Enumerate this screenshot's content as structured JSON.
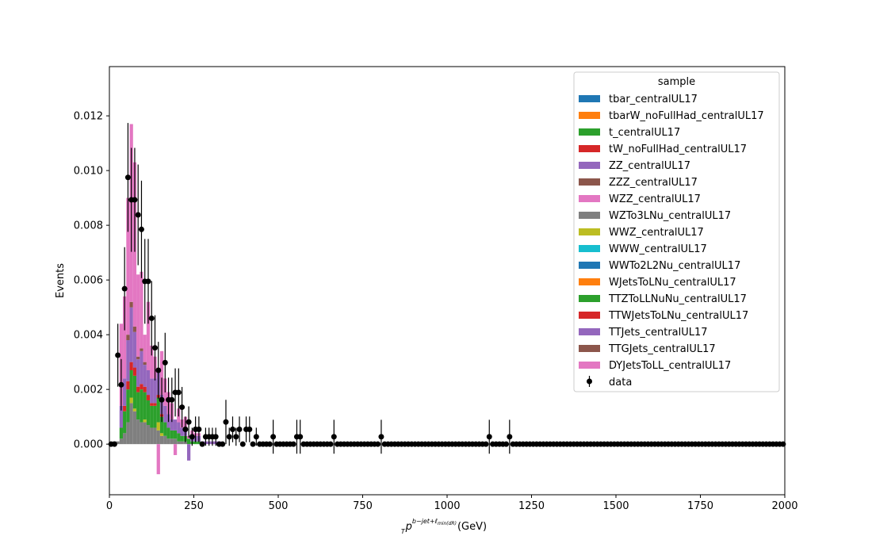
{
  "chart_data": {
    "type": "bar",
    "stacked": true,
    "xlabel_main": "p",
    "xlabel_sub": "T",
    "xlabel_sup": "b−jet+ℓ",
    "xlabel_sup_sub": "min(dR)",
    "xlabel_unit": " (GeV)",
    "ylabel": "Events",
    "xlim": [
      0,
      2000
    ],
    "ylim": [
      -0.00185,
      0.0138
    ],
    "bin_width": 10,
    "xticks": [
      0,
      250,
      500,
      750,
      1000,
      1250,
      1500,
      1750,
      2000
    ],
    "xtick_labels": [
      "0",
      "250",
      "500",
      "750",
      "1000",
      "1250",
      "1500",
      "1750",
      "2000"
    ],
    "yticks": [
      0.0,
      0.002,
      0.004,
      0.006,
      0.008,
      0.01,
      0.012
    ],
    "ytick_labels": [
      "0.000",
      "0.002",
      "0.004",
      "0.006",
      "0.008",
      "0.010",
      "0.012"
    ],
    "grid": false,
    "legend": {
      "title": "sample",
      "placement": "upper right"
    },
    "colors": {
      "tab_blue": "#1f77b4",
      "tab_orange": "#ff7f0e",
      "tab_green": "#2ca02c",
      "tab_red": "#d62728",
      "tab_purple": "#9467bd",
      "tab_brown": "#8c564b",
      "tab_pink": "#e377c2",
      "tab_gray": "#7f7f7f",
      "tab_olive": "#bcbd22",
      "tab_cyan": "#17becf"
    },
    "series": [
      {
        "name": "tbar_centralUL17",
        "color": "#1f77b4",
        "values": {}
      },
      {
        "name": "tbarW_noFullHad_centralUL17",
        "color": "#ff7f0e",
        "values": {}
      },
      {
        "name": "t_centralUL17",
        "color": "#2ca02c",
        "values": {}
      },
      {
        "name": "tW_noFullHad_centralUL17",
        "color": "#d62728",
        "values": {}
      },
      {
        "name": "ZZ_centralUL17",
        "color": "#9467bd",
        "values": {}
      },
      {
        "name": "ZZZ_centralUL17",
        "color": "#8c564b",
        "values": {}
      },
      {
        "name": "WZZ_centralUL17",
        "color": "#e377c2",
        "values": {}
      },
      {
        "name": "WZTo3LNu_centralUL17",
        "color": "#7f7f7f",
        "values": {
          "10": 0.0001,
          "20": 0.0001,
          "30": 0.0002,
          "40": 0.0004,
          "50": 0.0008,
          "60": 0.0015,
          "70": 0.0012,
          "80": 0.0009,
          "90": 0.0008,
          "100": 0.0008,
          "110": 0.0007,
          "120": 0.0006,
          "130": 0.0006,
          "140": 0.0005,
          "150": 0.0003,
          "160": 0.0003,
          "170": 0.0002,
          "180": 0.0002,
          "190": 0.0002,
          "200": 0.0001,
          "210": 0.0001,
          "220": 0.0001
        }
      },
      {
        "name": "WWZ_centralUL17",
        "color": "#bcbd22",
        "values": {
          "60": 0.0002,
          "70": 0.0001,
          "100": 0.0001,
          "140": 0.0003,
          "150": 0.0001
        }
      },
      {
        "name": "WWW_centralUL17",
        "color": "#17becf",
        "values": {}
      },
      {
        "name": "WWTo2L2Nu_centralUL17",
        "color": "#1f77b4",
        "values": {}
      },
      {
        "name": "WJetsToLNu_centralUL17",
        "color": "#ff7f0e",
        "values": {}
      },
      {
        "name": "TTZToLLNuNu_centralUL17",
        "color": "#2ca02c",
        "values": {
          "30": 0.0004,
          "40": 0.0008,
          "50": 0.0012,
          "60": 0.001,
          "70": 0.0012,
          "80": 0.001,
          "90": 0.0012,
          "100": 0.001,
          "110": 0.0009,
          "120": 0.0008,
          "130": 0.0008,
          "140": 0.0009,
          "150": 0.0006,
          "160": 0.0005,
          "170": 0.0004,
          "180": 0.0003,
          "190": 0.0003,
          "200": 0.0003,
          "210": 0.0002,
          "220": 0.0002,
          "230": 0.0002,
          "240": 0.0001,
          "250": 0.0001,
          "260": 0.0001
        }
      },
      {
        "name": "TTWJetsToLNu_centralUL17",
        "color": "#d62728",
        "values": {
          "40": 0.0002,
          "50": 0.0003,
          "60": 0.0003,
          "70": 0.0003,
          "80": 0.0002,
          "90": 0.0002,
          "100": 0.0002,
          "110": 0.0002,
          "120": 0.0001,
          "130": 0.0001,
          "140": 0.0001,
          "150": 0.0001
        }
      },
      {
        "name": "TTJets_centralUL17",
        "color": "#9467bd",
        "values": {
          "30": 0.0008,
          "40": 0.001,
          "50": 0.0015,
          "60": 0.002,
          "70": 0.0013,
          "80": 0.001,
          "90": 0.0012,
          "100": 0.0008,
          "110": 0.0009,
          "120": 0.0009,
          "130": 0.0009,
          "140": 0.0009,
          "150": 0.0007,
          "160": 0.0006,
          "170": 0.0005,
          "180": 0.0004,
          "190": 0.0004,
          "200": 0.0004,
          "210": 0.0003,
          "220": 0.0003,
          "230": -0.0006,
          "240": 0.0002,
          "250": 0.0002,
          "260": 0.0002,
          "270": 0.0001,
          "280": 0.0001,
          "290": 0.0001,
          "300": 0.0001,
          "310": 0.0001,
          "320": 0.0001
        }
      },
      {
        "name": "TTGJets_centralUL17",
        "color": "#8c564b",
        "values": {
          "50": 0.0002,
          "60": 0.0002,
          "70": 0.0002,
          "80": 0.0001,
          "90": 0.0001,
          "100": 0.0001
        }
      },
      {
        "name": "DYJetsToLL_centralUL17",
        "color": "#e377c2",
        "values": {
          "30": 0.003,
          "40": 0.003,
          "50": 0.005,
          "60": 0.0065,
          "70": 0.006,
          "80": 0.003,
          "90": 0.0028,
          "100": 0.001,
          "110": 0.0025,
          "120": 0.0012,
          "130": 0.0008,
          "140": -0.0011,
          "150": 0.0016,
          "160": 0.001,
          "170": 0.0008,
          "180": 0.0006,
          "190": -0.0004,
          "200": 0.0005,
          "210": 0.0003,
          "220": 0.0004,
          "230": 0.0001,
          "240": 0.0002,
          "250": 0.0001,
          "260": 0.0001
        }
      }
    ],
    "data": {
      "name": "data",
      "color": "#000000",
      "points": [
        {
          "x": 5,
          "y": 0,
          "err": 0
        },
        {
          "x": 15,
          "y": 0,
          "err": 0
        },
        {
          "x": 25,
          "y": 0.00325,
          "err": 0.00115
        },
        {
          "x": 35,
          "y": 0.00217,
          "err": 0.00094
        },
        {
          "x": 45,
          "y": 0.00568,
          "err": 0.00152
        },
        {
          "x": 55,
          "y": 0.00975,
          "err": 0.00199
        },
        {
          "x": 65,
          "y": 0.00893,
          "err": 0.0019
        },
        {
          "x": 75,
          "y": 0.00893,
          "err": 0.0019
        },
        {
          "x": 85,
          "y": 0.00838,
          "err": 0.00184
        },
        {
          "x": 95,
          "y": 0.00785,
          "err": 0.00178
        },
        {
          "x": 105,
          "y": 0.00595,
          "err": 0.00155
        },
        {
          "x": 115,
          "y": 0.00595,
          "err": 0.00155
        },
        {
          "x": 125,
          "y": 0.0046,
          "err": 0.00136
        },
        {
          "x": 135,
          "y": 0.00352,
          "err": 0.00119
        },
        {
          "x": 145,
          "y": 0.0027,
          "err": 0.00104
        },
        {
          "x": 155,
          "y": 0.00162,
          "err": 0.00081
        },
        {
          "x": 165,
          "y": 0.00298,
          "err": 0.00109
        },
        {
          "x": 175,
          "y": 0.00162,
          "err": 0.00081
        },
        {
          "x": 185,
          "y": 0.00162,
          "err": 0.00081
        },
        {
          "x": 195,
          "y": 0.00189,
          "err": 0.00088
        },
        {
          "x": 205,
          "y": 0.00189,
          "err": 0.00088
        },
        {
          "x": 215,
          "y": 0.00135,
          "err": 0.00074
        },
        {
          "x": 225,
          "y": 0.00054,
          "err": 0.00047
        },
        {
          "x": 235,
          "y": 0.00081,
          "err": 0.00057
        },
        {
          "x": 245,
          "y": 0.00027,
          "err": 0.00033
        },
        {
          "x": 255,
          "y": 0.00054,
          "err": 0.00047
        },
        {
          "x": 265,
          "y": 0.00054,
          "err": 0.00047
        },
        {
          "x": 275,
          "y": 0,
          "err": 0
        },
        {
          "x": 285,
          "y": 0.00027,
          "err": 0.00033
        },
        {
          "x": 295,
          "y": 0.00027,
          "err": 0.00033
        },
        {
          "x": 305,
          "y": 0.00027,
          "err": 0.00033
        },
        {
          "x": 315,
          "y": 0.00027,
          "err": 0.00033
        },
        {
          "x": 325,
          "y": 0,
          "err": 0
        },
        {
          "x": 335,
          "y": 0,
          "err": 0
        },
        {
          "x": 345,
          "y": 0.00081,
          "err": 0.00081
        },
        {
          "x": 355,
          "y": 0.00027,
          "err": 0.00033
        },
        {
          "x": 365,
          "y": 0.00054,
          "err": 0.00047
        },
        {
          "x": 375,
          "y": 0.00027,
          "err": 0.00033
        },
        {
          "x": 385,
          "y": 0.00054,
          "err": 0.00047
        },
        {
          "x": 395,
          "y": 0,
          "err": 0
        },
        {
          "x": 405,
          "y": 0.00054,
          "err": 0.00047
        },
        {
          "x": 415,
          "y": 0.00054,
          "err": 0.00047
        },
        {
          "x": 425,
          "y": 0,
          "err": 0
        },
        {
          "x": 435,
          "y": 0.00027,
          "err": 0.00033
        },
        {
          "x": 485,
          "y": 0.00027,
          "err": 0.00062
        },
        {
          "x": 555,
          "y": 0.00027,
          "err": 0.00062
        },
        {
          "x": 565,
          "y": 0.00027,
          "err": 0.00062
        },
        {
          "x": 665,
          "y": 0.00027,
          "err": 0.00062
        },
        {
          "x": 805,
          "y": 0.00027,
          "err": 0.00062
        },
        {
          "x": 1125,
          "y": 0.00027,
          "err": 0.00062
        },
        {
          "x": 1185,
          "y": 0.00027,
          "err": 0.00062
        }
      ]
    }
  }
}
